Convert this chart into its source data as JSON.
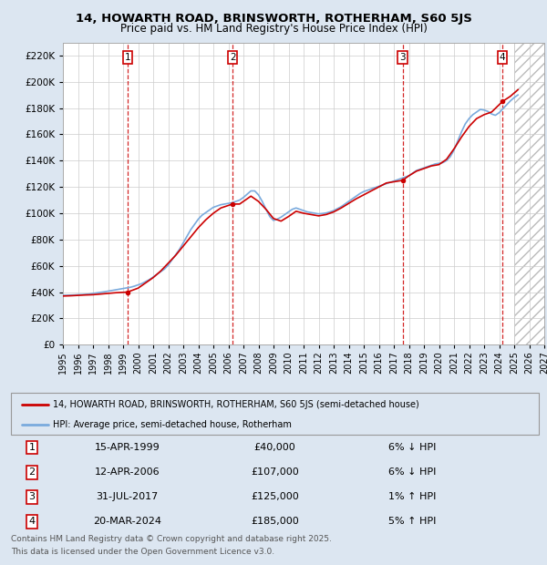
{
  "title1": "14, HOWARTH ROAD, BRINSWORTH, ROTHERHAM, S60 5JS",
  "title2": "Price paid vs. HM Land Registry's House Price Index (HPI)",
  "legend_label_red": "14, HOWARTH ROAD, BRINSWORTH, ROTHERHAM, S60 5JS (semi-detached house)",
  "legend_label_blue": "HPI: Average price, semi-detached house, Rotherham",
  "footer1": "Contains HM Land Registry data © Crown copyright and database right 2025.",
  "footer2": "This data is licensed under the Open Government Licence v3.0.",
  "purchases": [
    {
      "num": 1,
      "date": "15-APR-1999",
      "price": 40000,
      "pct": "6%",
      "dir": "↓",
      "x_year": 1999.29
    },
    {
      "num": 2,
      "date": "12-APR-2006",
      "price": 107000,
      "pct": "6%",
      "dir": "↓",
      "x_year": 2006.28
    },
    {
      "num": 3,
      "date": "31-JUL-2017",
      "price": 125000,
      "pct": "1%",
      "dir": "↑",
      "x_year": 2017.58
    },
    {
      "num": 4,
      "date": "20-MAR-2024",
      "price": 185000,
      "pct": "5%",
      "dir": "↑",
      "x_year": 2024.22
    }
  ],
  "ylim": [
    0,
    230000
  ],
  "xlim_start": 1995,
  "xlim_end": 2027,
  "hpi_color": "#7aaadd",
  "price_color": "#cc0000",
  "bg_color": "#dce6f1",
  "plot_bg": "#ffffff",
  "grid_color": "#cccccc",
  "annotation_box_color": "#cc0000",
  "hpi_data_years": [
    1995,
    1995.25,
    1995.5,
    1995.75,
    1996,
    1996.25,
    1996.5,
    1996.75,
    1997,
    1997.25,
    1997.5,
    1997.75,
    1998,
    1998.25,
    1998.5,
    1998.75,
    1999,
    1999.25,
    1999.5,
    1999.75,
    2000,
    2000.25,
    2000.5,
    2000.75,
    2001,
    2001.25,
    2001.5,
    2001.75,
    2002,
    2002.25,
    2002.5,
    2002.75,
    2003,
    2003.25,
    2003.5,
    2003.75,
    2004,
    2004.25,
    2004.5,
    2004.75,
    2005,
    2005.25,
    2005.5,
    2005.75,
    2006,
    2006.25,
    2006.5,
    2006.75,
    2007,
    2007.25,
    2007.5,
    2007.75,
    2008,
    2008.25,
    2008.5,
    2008.75,
    2009,
    2009.25,
    2009.5,
    2009.75,
    2010,
    2010.25,
    2010.5,
    2010.75,
    2011,
    2011.25,
    2011.5,
    2011.75,
    2012,
    2012.25,
    2012.5,
    2012.75,
    2013,
    2013.25,
    2013.5,
    2013.75,
    2014,
    2014.25,
    2014.5,
    2014.75,
    2015,
    2015.25,
    2015.5,
    2015.75,
    2016,
    2016.25,
    2016.5,
    2016.75,
    2017,
    2017.25,
    2017.5,
    2017.75,
    2018,
    2018.25,
    2018.5,
    2018.75,
    2019,
    2019.25,
    2019.5,
    2019.75,
    2020,
    2020.25,
    2020.5,
    2020.75,
    2021,
    2021.25,
    2021.5,
    2021.75,
    2022,
    2022.25,
    2022.5,
    2022.75,
    2023,
    2023.25,
    2023.5,
    2023.75,
    2024,
    2024.25,
    2024.5,
    2024.75,
    2025,
    2025.25
  ],
  "hpi_data_values": [
    37500,
    37600,
    37700,
    37800,
    38000,
    38100,
    38300,
    38500,
    39000,
    39400,
    39800,
    40200,
    40700,
    41200,
    41700,
    42200,
    42700,
    43200,
    43700,
    44500,
    45500,
    46500,
    48000,
    49500,
    51500,
    53500,
    55500,
    57500,
    60500,
    64500,
    68500,
    72500,
    77500,
    82500,
    87500,
    91500,
    95500,
    98500,
    100500,
    102500,
    104500,
    105500,
    106500,
    107000,
    107500,
    108000,
    109000,
    110000,
    112000,
    114500,
    117000,
    117000,
    114000,
    109000,
    103000,
    97500,
    94500,
    95500,
    97000,
    99000,
    101000,
    103000,
    104000,
    103000,
    102000,
    101000,
    100500,
    100000,
    99500,
    99800,
    100200,
    101000,
    102000,
    103500,
    105000,
    107000,
    109000,
    111000,
    113000,
    115000,
    116500,
    117500,
    118500,
    119500,
    120500,
    121500,
    122500,
    123500,
    124500,
    125500,
    126500,
    127500,
    128500,
    130500,
    132500,
    133500,
    134500,
    135500,
    136500,
    137500,
    138000,
    138500,
    140000,
    143000,
    148000,
    155000,
    162000,
    168000,
    172000,
    175000,
    177000,
    179000,
    178500,
    177500,
    175500,
    174500,
    176500,
    179500,
    182500,
    185500,
    188000,
    190000
  ],
  "price_data_years": [
    1995.0,
    1995.5,
    1996.0,
    1996.5,
    1997.0,
    1997.5,
    1998.0,
    1998.5,
    1999.29,
    2000.0,
    2000.5,
    2001.0,
    2001.5,
    2002.0,
    2002.5,
    2003.0,
    2003.5,
    2004.0,
    2004.5,
    2005.0,
    2005.5,
    2006.28,
    2006.75,
    2007.0,
    2007.5,
    2008.0,
    2008.5,
    2009.0,
    2009.5,
    2010.0,
    2010.5,
    2011.0,
    2011.5,
    2012.0,
    2012.5,
    2013.0,
    2013.5,
    2014.0,
    2014.5,
    2015.0,
    2015.5,
    2016.0,
    2016.5,
    2017.58,
    2018.0,
    2018.5,
    2019.0,
    2019.5,
    2020.0,
    2020.5,
    2021.0,
    2021.5,
    2022.0,
    2022.5,
    2023.0,
    2023.5,
    2024.22,
    2024.75,
    2025.25
  ],
  "price_data_values": [
    37000,
    37200,
    37500,
    37800,
    38000,
    38500,
    39000,
    39500,
    40000,
    43000,
    47000,
    51000,
    56000,
    62000,
    68000,
    75000,
    82000,
    89000,
    95000,
    100000,
    104000,
    107000,
    107000,
    109000,
    113000,
    109000,
    103000,
    96000,
    94000,
    97500,
    101500,
    100000,
    99000,
    98000,
    99000,
    101000,
    104000,
    107500,
    111000,
    114000,
    117000,
    120000,
    123000,
    125000,
    128500,
    132000,
    134000,
    136000,
    137000,
    141000,
    149000,
    158000,
    166000,
    172000,
    175000,
    177000,
    185000,
    189000,
    194000
  ]
}
